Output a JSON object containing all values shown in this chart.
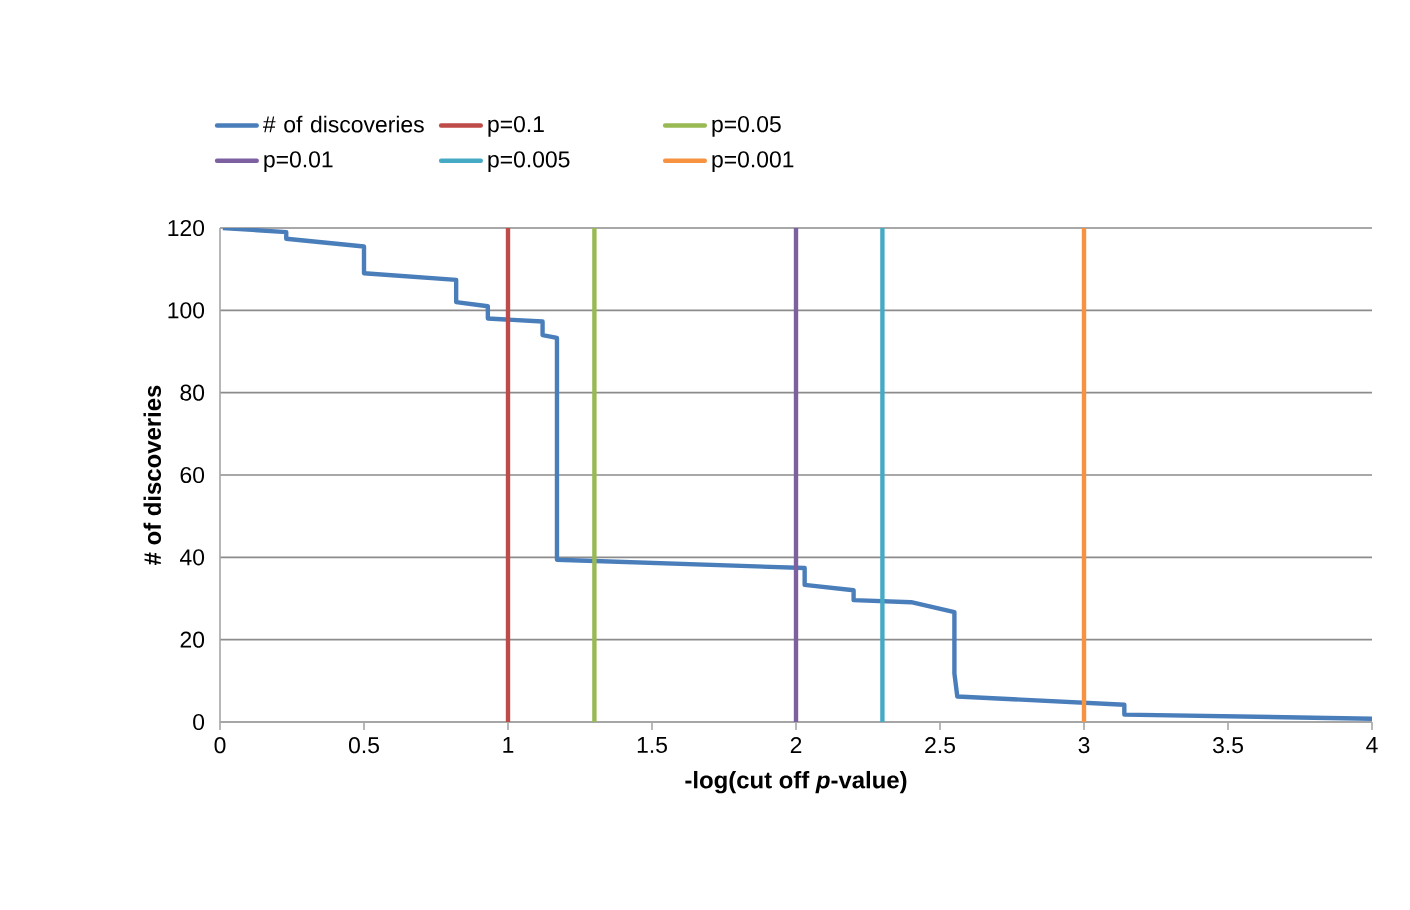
{
  "chart_data": {
    "type": "line",
    "xlabel": "**-log(cut off *p*-value)**",
    "ylabel": "**# of discoveries**",
    "xlim": [
      0,
      4
    ],
    "ylim": [
      0,
      120
    ],
    "xticks": [
      0,
      0.5,
      1,
      1.5,
      2,
      2.5,
      3,
      3.5,
      4
    ],
    "yticks": [
      0,
      20,
      40,
      60,
      80,
      100,
      120
    ],
    "grid": "y",
    "legend": "top",
    "series": [
      {
        "name": "# of discoveries",
        "color": "#4a7ebb",
        "x": [
          0.01,
          0.23,
          0.23,
          0.5,
          0.5,
          0.82,
          0.82,
          0.93,
          0.93,
          1.12,
          1.12,
          1.17,
          1.17,
          2.03,
          2.03,
          2.2,
          2.2,
          2.4,
          2.55,
          2.55,
          2.56,
          3.14,
          3.14,
          4.0
        ],
        "values": [
          120,
          119,
          117.4,
          115.5,
          109,
          107.4,
          102,
          101,
          98,
          97.3,
          94,
          93.3,
          39.4,
          37.4,
          33.3,
          32,
          29.6,
          29.1,
          26.7,
          11.8,
          6.2,
          4.2,
          1.8,
          0.8
        ]
      },
      {
        "name": "p=0.1",
        "color": "#be4b48",
        "x": [
          1,
          1
        ],
        "values": [
          0,
          120
        ]
      },
      {
        "name": "p=0.05",
        "color": "#98b954",
        "x": [
          1.3,
          1.3
        ],
        "values": [
          0,
          120
        ]
      },
      {
        "name": "p=0.01",
        "color": "#7d60a0",
        "x": [
          2,
          2
        ],
        "values": [
          0,
          120
        ]
      },
      {
        "name": "p=0.005",
        "color": "#46aac5",
        "x": [
          2.3,
          2.3
        ],
        "values": [
          0,
          120
        ]
      },
      {
        "name": "p=0.001",
        "color": "#f69240",
        "x": [
          3,
          3
        ],
        "values": [
          0,
          120
        ]
      }
    ]
  }
}
